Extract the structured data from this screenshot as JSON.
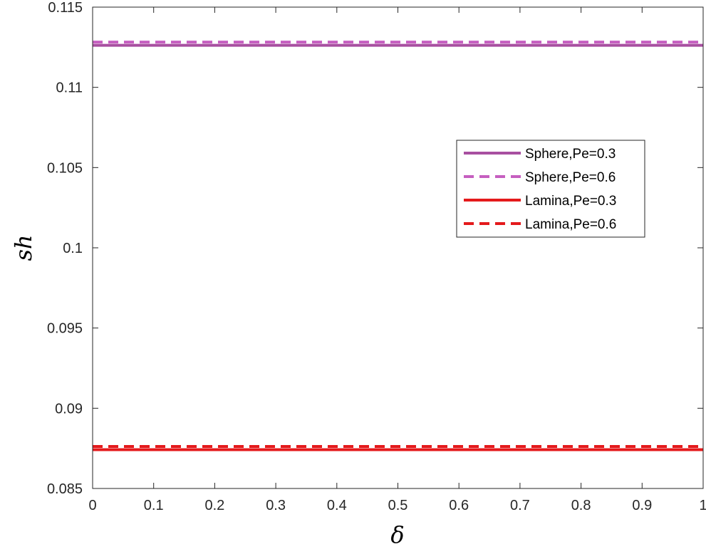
{
  "chart_data": {
    "type": "line",
    "title": "",
    "xlabel": "δ",
    "ylabel": "sh",
    "xlim": [
      0,
      1
    ],
    "ylim": [
      0.085,
      0.115
    ],
    "x_ticks": [
      "0",
      "0.1",
      "0.2",
      "0.3",
      "0.4",
      "0.5",
      "0.6",
      "0.7",
      "0.8",
      "0.9",
      "1"
    ],
    "y_ticks": [
      "0.085",
      "0.09",
      "0.095",
      "0.1",
      "0.105",
      "0.11",
      "0.115"
    ],
    "grid": false,
    "legend_position": "upper-right",
    "x": [
      0,
      1
    ],
    "series": [
      {
        "name": "Sphere,Pe=0.3",
        "values": [
          0.11262,
          0.11262
        ],
        "color": "#A84FA0",
        "style": "solid"
      },
      {
        "name": "Sphere,Pe=0.6",
        "values": [
          0.11282,
          0.11282
        ],
        "color": "#C65FC0",
        "style": "dashed"
      },
      {
        "name": "Lamina,Pe=0.3",
        "values": [
          0.08742,
          0.08742
        ],
        "color": "#E41A1C",
        "style": "solid"
      },
      {
        "name": "Lamina,Pe=0.6",
        "values": [
          0.08762,
          0.08762
        ],
        "color": "#E41A1C",
        "style": "dashed"
      }
    ]
  }
}
